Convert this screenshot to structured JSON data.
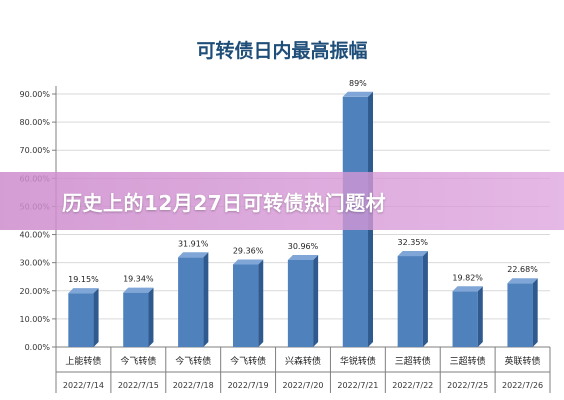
{
  "banner": {
    "text": "历史上的12月27日可转债热门题材"
  },
  "chart_data": {
    "type": "bar",
    "title": "可转债日内最高振幅",
    "xlabel": "",
    "ylabel": "",
    "ylim": [
      0,
      0.9
    ],
    "ytick_values": [
      0,
      0.1,
      0.2,
      0.3,
      0.4,
      0.5,
      0.6,
      0.7,
      0.8,
      0.9
    ],
    "ytick_labels": [
      "0.00%",
      "10.00%",
      "20.00%",
      "30.00%",
      "40.00%",
      "50.00%",
      "60.00%",
      "70.00%",
      "80.00%",
      "90.00%"
    ],
    "grid": true,
    "categories": [
      "上能转债",
      "今飞转债",
      "今飞转债",
      "今飞转债",
      "兴森转债",
      "华锐转债",
      "三超转债",
      "三超转债",
      "英联转债"
    ],
    "dates": [
      "2022/7/14",
      "2022/7/15",
      "2022/7/18",
      "2022/7/19",
      "2022/7/20",
      "2022/7/21",
      "2022/7/22",
      "2022/7/25",
      "2022/7/26"
    ],
    "values": [
      0.1915,
      0.1934,
      0.3191,
      0.2936,
      0.3096,
      0.89,
      0.3235,
      0.1982,
      0.2268
    ],
    "data_labels": [
      "19.15%",
      "19.34%",
      "31.91%",
      "29.36%",
      "30.96%",
      "89%",
      "32.35%",
      "19.82%",
      "22.68%"
    ],
    "bar_color": "#4f81bd",
    "bar_side_color": "#2f5a8f",
    "bar_top_color": "#7fa6d6"
  }
}
